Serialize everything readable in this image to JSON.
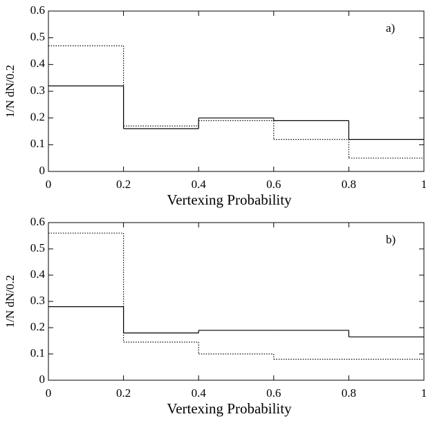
{
  "chart_data": [
    {
      "type": "histogram",
      "annotation": "a)",
      "xlabel": "Vertexing Probability",
      "ylabel": "1/N dN/0.2",
      "bins": [
        0,
        0.2,
        0.4,
        0.6,
        0.8,
        1
      ],
      "series": [
        {
          "color": "#000000",
          "dash": "solid",
          "values": [
            0.32,
            0.16,
            0.2,
            0.19,
            0.12
          ]
        },
        {
          "color": "#000000",
          "dash": "dotted",
          "values": [
            0.47,
            0.17,
            0.19,
            0.12,
            0.05
          ]
        }
      ],
      "xlim": [
        0,
        1
      ],
      "xticks": [
        0,
        0.2,
        0.4,
        0.6,
        0.8,
        1
      ],
      "ylim": [
        0,
        0.6
      ],
      "yticks": [
        0,
        0.1,
        0.2,
        0.3,
        0.4,
        0.5,
        0.6
      ]
    },
    {
      "type": "histogram",
      "annotation": "b)",
      "xlabel": "Vertexing Probability",
      "ylabel": "1/N dN/0.2",
      "bins": [
        0,
        0.2,
        0.4,
        0.6,
        0.8,
        1
      ],
      "series": [
        {
          "color": "#000000",
          "dash": "solid",
          "values": [
            0.28,
            0.18,
            0.19,
            0.19,
            0.165
          ]
        },
        {
          "color": "#000000",
          "dash": "dotted",
          "values": [
            0.56,
            0.145,
            0.1,
            0.08,
            0.08
          ]
        }
      ],
      "xlim": [
        0,
        1
      ],
      "xticks": [
        0,
        0.2,
        0.4,
        0.6,
        0.8,
        1
      ],
      "ylim": [
        0,
        0.6
      ],
      "yticks": [
        0,
        0.1,
        0.2,
        0.3,
        0.4,
        0.5,
        0.6
      ]
    }
  ]
}
